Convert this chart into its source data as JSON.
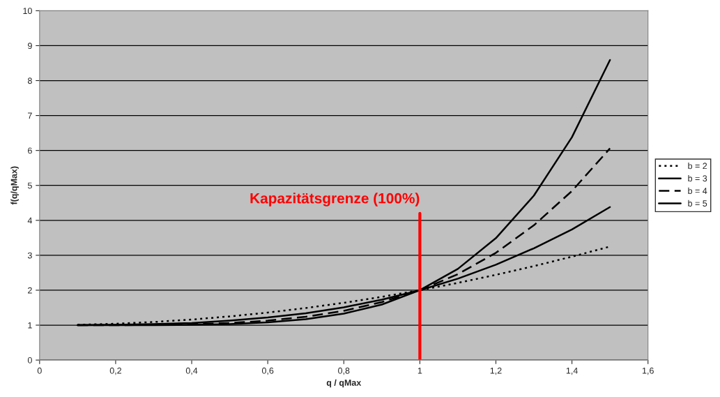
{
  "chart_data": {
    "type": "line",
    "xlabel": "q / qMax",
    "ylabel": "f(q/qMax)",
    "x": [
      0.1,
      0.2,
      0.3,
      0.4,
      0.5,
      0.6,
      0.7,
      0.8,
      0.9,
      1.0,
      1.1,
      1.2,
      1.3,
      1.4,
      1.5
    ],
    "series": [
      {
        "name": "b = 2",
        "color": "#000000",
        "line_style": "dotted",
        "values": [
          1.01,
          1.04,
          1.09,
          1.16,
          1.25,
          1.36,
          1.49,
          1.64,
          1.81,
          2.0,
          2.21,
          2.44,
          2.69,
          2.96,
          3.25
        ]
      },
      {
        "name": "b = 3",
        "color": "#000000",
        "line_style": "solid",
        "values": [
          1.0,
          1.01,
          1.03,
          1.06,
          1.13,
          1.22,
          1.34,
          1.51,
          1.73,
          2.0,
          2.33,
          2.73,
          3.2,
          3.74,
          4.38
        ]
      },
      {
        "name": "b = 4",
        "color": "#000000",
        "line_style": "dashed",
        "values": [
          1.0,
          1.0,
          1.01,
          1.03,
          1.06,
          1.13,
          1.24,
          1.41,
          1.66,
          2.0,
          2.46,
          3.07,
          3.86,
          4.84,
          6.06
        ]
      },
      {
        "name": "b = 5",
        "color": "#000000",
        "line_style": "solid",
        "values": [
          1.0,
          1.0,
          1.0,
          1.01,
          1.03,
          1.08,
          1.17,
          1.33,
          1.59,
          2.0,
          2.61,
          3.49,
          4.71,
          6.38,
          8.59
        ]
      }
    ],
    "xlim": [
      0,
      1.6
    ],
    "xticks": [
      0,
      {
        "value": 0.2,
        "label": "0,2"
      },
      {
        "value": 0.4,
        "label": "0,4"
      },
      {
        "value": 0.6,
        "label": "0,6"
      },
      {
        "value": 0.8,
        "label": "0,8"
      },
      1,
      {
        "value": 1.2,
        "label": "1,2"
      },
      {
        "value": 1.4,
        "label": "1,4"
      },
      {
        "value": 1.6,
        "label": "1,6"
      }
    ],
    "ylim": [
      0,
      10
    ],
    "yticks": [
      0,
      1,
      2,
      3,
      4,
      5,
      6,
      7,
      8,
      9,
      10
    ],
    "grid": "y",
    "legend": "right",
    "marker": "none",
    "ref_lines": [
      {
        "axis": "x",
        "value": 1,
        "label": "Kapazitätsgrenze (100%)",
        "color": "#ff0000"
      }
    ]
  }
}
